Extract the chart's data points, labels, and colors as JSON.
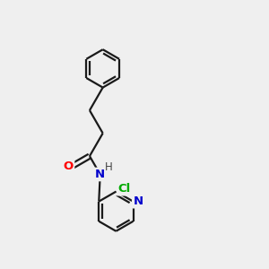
{
  "bg_color": "#efefef",
  "line_color": "#1a1a1a",
  "line_width": 1.6,
  "atom_colors": {
    "O": "#ff0000",
    "N": "#0000cc",
    "Cl": "#00aa00",
    "H": "#444444"
  },
  "font_size": 9.5,
  "fig_size": [
    3.0,
    3.0
  ],
  "dpi": 100
}
